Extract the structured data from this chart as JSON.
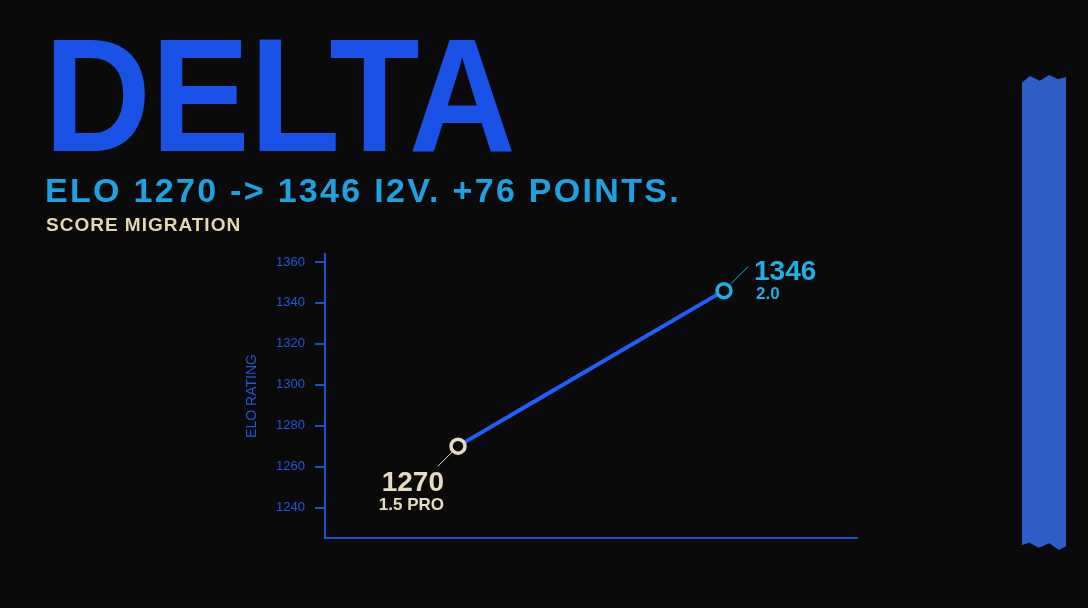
{
  "chart_data": {
    "type": "line",
    "title": "DELTA",
    "subtitle": "ELO 1270 -> 1346 I2V. +76 POINTS.",
    "ylabel": "ELO RATING",
    "annotations": [
      "SCORE MIGRATION",
      "1.5 PRO",
      "2.0"
    ],
    "categories": [
      null,
      null
    ],
    "series": [
      {
        "color": "#1f5eff",
        "colors": [
          "#e6dcc3",
          "#22aee6"
        ],
        "values": [
          1270,
          1346
        ]
      }
    ],
    "ylim": [
      1225,
      1364
    ],
    "yticks": [
      1240,
      1260,
      1280,
      1300,
      1320,
      1340,
      1360
    ],
    "grid": false,
    "legend": false,
    "tick_labels": "y",
    "marker": "circle",
    "line_style": "solid",
    "data_labels": true
  }
}
